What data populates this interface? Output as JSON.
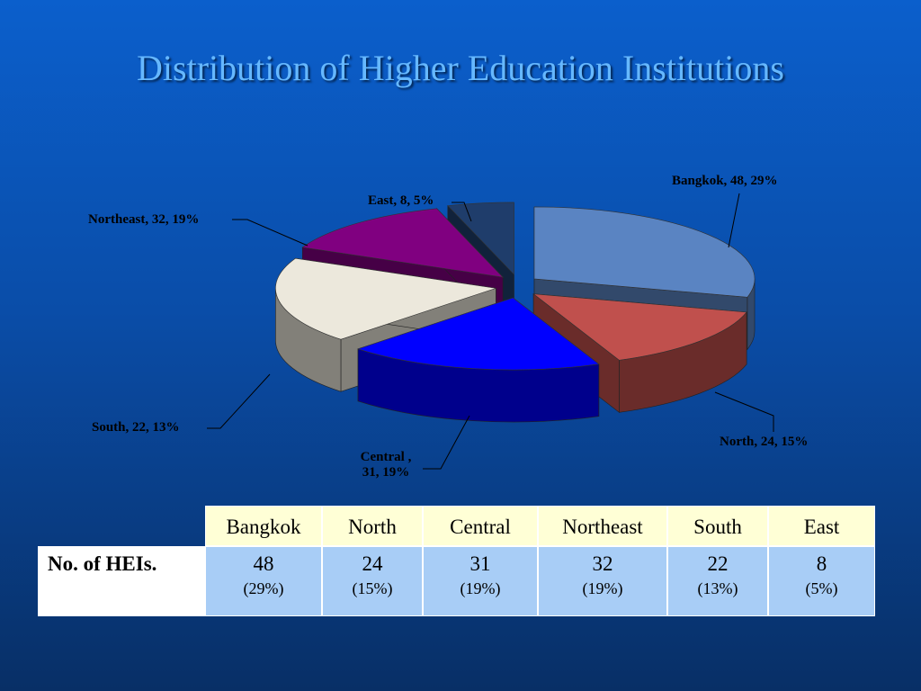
{
  "title": "Distribution of Higher Education Institutions",
  "chart_data": {
    "type": "pie",
    "categories": [
      "Bangkok",
      "North",
      "Central",
      "Northeast",
      "South",
      "East"
    ],
    "values": [
      48,
      24,
      31,
      32,
      22,
      8
    ],
    "value_labels": [
      "Bangkok, 48, 29%",
      "North, 24, 15%",
      "Central , 31, 19%",
      "Northeast, 32, 19%",
      "South, 22, 13%",
      "East, 8, 5%"
    ],
    "colors": [
      "#5a84c2",
      "#c0504d",
      "#0000ff",
      "#ece8dc",
      "#800080",
      "#1f3d6b"
    ]
  },
  "table": {
    "columns": [
      "Bangkok",
      "North",
      "Central",
      "Northeast",
      "South",
      "East"
    ],
    "row_label": "No. of HEIs.",
    "counts": [
      "48",
      "24",
      "31",
      "32",
      "22",
      "8"
    ],
    "percents": [
      "(29%)",
      "(15%)",
      "(19%)",
      "(19%)",
      "(13%)",
      "(5%)"
    ]
  }
}
